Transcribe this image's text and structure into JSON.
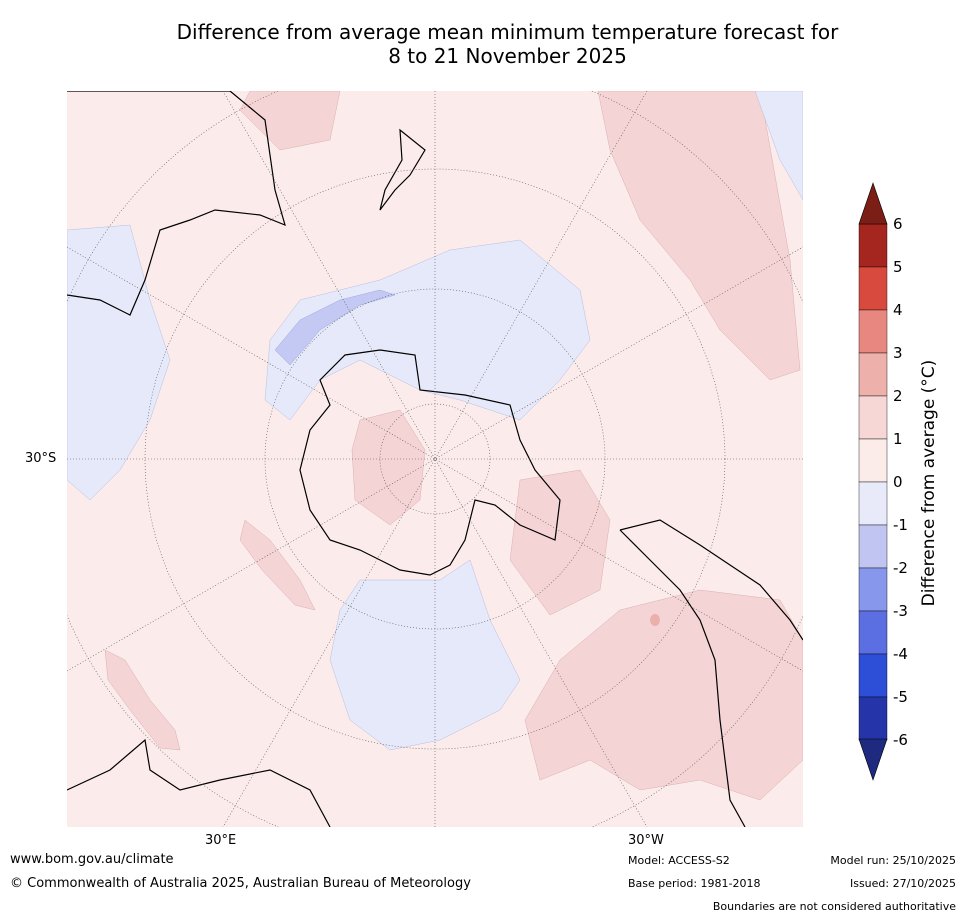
{
  "title_line1": "Difference from average mean minimum temperature forecast for",
  "title_line2": "8 to 21 November 2025",
  "map": {
    "lat_label": "30°S",
    "lon_labels": [
      "30°E",
      "30°W"
    ],
    "ocean_color": "#fbeceb",
    "warm1_color": "#f4d4d4",
    "warm2_color": "#ebb0ab",
    "cool1_color": "#e6e9f9",
    "cool2_color": "#c3c9f2"
  },
  "colorbar": {
    "label": "Difference from average (°C)",
    "ticks": [
      "6",
      "5",
      "4",
      "3",
      "2",
      "1",
      "0",
      "-1",
      "-2",
      "-3",
      "-4",
      "-5",
      "-6"
    ],
    "colors": [
      "#a5251f",
      "#d84a3e",
      "#e8877f",
      "#eeb0aa",
      "#f6d7d6",
      "#fbecea",
      "#e8eafa",
      "#c0c6f1",
      "#8797eb",
      "#5b6fe2",
      "#2d4fd8",
      "#2634a9"
    ],
    "over_color": "#7b1e16",
    "under_color": "#1e2a7f"
  },
  "footer": {
    "website": "www.bom.gov.au/climate",
    "copyright": "© Commonwealth of Australia 2025, Australian Bureau of Meteorology",
    "model": "Model: ACCESS-S2",
    "base_period": "Base period: 1981-2018",
    "model_run": "Model run: 25/10/2025",
    "issued": "Issued: 27/10/2025",
    "disclaimer": "Boundaries are not considered authoritative"
  }
}
